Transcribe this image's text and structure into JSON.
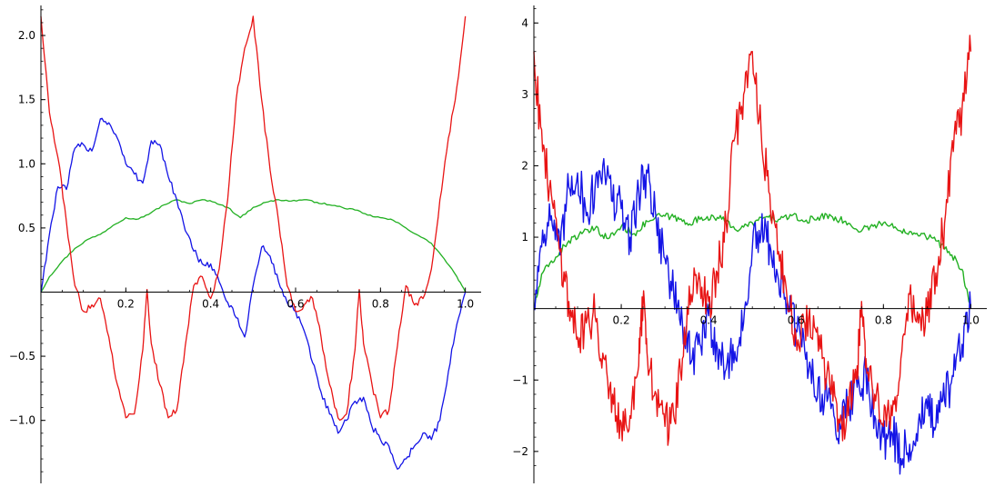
{
  "chart_data": [
    {
      "type": "line",
      "title": "",
      "xlabel": "",
      "ylabel": "",
      "xlim": [
        0,
        1.02
      ],
      "ylim": [
        -1.42,
        2.22
      ],
      "xticks": [
        0.2,
        0.4,
        0.6,
        0.8,
        1.0
      ],
      "xtick_labels": [
        "0.2",
        "0.4",
        "0.6",
        "0.8",
        "1.0"
      ],
      "yticks": [
        -1.0,
        -0.5,
        0.5,
        1.0,
        1.5,
        2.0
      ],
      "ytick_labels": [
        "−1.0",
        "−0.5",
        "0.5",
        "1.0",
        "1.5",
        "2.0"
      ],
      "grid": false,
      "series": [
        {
          "color": "#22b022",
          "x": [
            0,
            0.02,
            0.05,
            0.08,
            0.11,
            0.14,
            0.17,
            0.2,
            0.23,
            0.26,
            0.29,
            0.32,
            0.35,
            0.38,
            0.41,
            0.44,
            0.47,
            0.5,
            0.53,
            0.56,
            0.59,
            0.62,
            0.65,
            0.68,
            0.71,
            0.74,
            0.77,
            0.8,
            0.83,
            0.86,
            0.89,
            0.92,
            0.95,
            0.98,
            1.0
          ],
          "values": [
            0,
            0.12,
            0.24,
            0.34,
            0.41,
            0.45,
            0.52,
            0.58,
            0.57,
            0.62,
            0.68,
            0.72,
            0.69,
            0.72,
            0.7,
            0.66,
            0.58,
            0.66,
            0.7,
            0.72,
            0.71,
            0.72,
            0.7,
            0.68,
            0.66,
            0.64,
            0.6,
            0.58,
            0.56,
            0.5,
            0.44,
            0.38,
            0.26,
            0.12,
            0
          ]
        },
        {
          "color": "#1414e6",
          "x": [
            0,
            0.02,
            0.04,
            0.06,
            0.08,
            0.1,
            0.12,
            0.14,
            0.16,
            0.18,
            0.2,
            0.22,
            0.24,
            0.26,
            0.28,
            0.3,
            0.32,
            0.34,
            0.36,
            0.38,
            0.4,
            0.42,
            0.44,
            0.46,
            0.48,
            0.5,
            0.52,
            0.54,
            0.56,
            0.58,
            0.6,
            0.62,
            0.64,
            0.66,
            0.68,
            0.7,
            0.72,
            0.74,
            0.76,
            0.78,
            0.8,
            0.82,
            0.84,
            0.86,
            0.88,
            0.9,
            0.92,
            0.94,
            0.96,
            0.98,
            1.0
          ],
          "values": [
            0,
            0.45,
            0.82,
            0.8,
            1.12,
            1.15,
            1.1,
            1.35,
            1.32,
            1.2,
            1.0,
            0.92,
            0.85,
            1.18,
            1.15,
            0.9,
            0.72,
            0.48,
            0.32,
            0.22,
            0.22,
            0.08,
            -0.08,
            -0.2,
            -0.35,
            0.05,
            0.35,
            0.28,
            0.08,
            -0.08,
            -0.15,
            -0.3,
            -0.55,
            -0.78,
            -0.95,
            -1.1,
            -1.0,
            -0.85,
            -0.82,
            -1.05,
            -1.15,
            -1.2,
            -1.38,
            -1.3,
            -1.2,
            -1.1,
            -1.15,
            -1.0,
            -0.62,
            -0.25,
            0
          ]
        },
        {
          "color": "#e81414",
          "x": [
            0,
            0.02,
            0.04,
            0.06,
            0.08,
            0.1,
            0.12,
            0.14,
            0.16,
            0.18,
            0.2,
            0.22,
            0.24,
            0.25,
            0.26,
            0.28,
            0.3,
            0.32,
            0.34,
            0.36,
            0.38,
            0.4,
            0.42,
            0.44,
            0.46,
            0.48,
            0.5,
            0.52,
            0.54,
            0.56,
            0.58,
            0.6,
            0.62,
            0.64,
            0.66,
            0.68,
            0.7,
            0.72,
            0.74,
            0.75,
            0.76,
            0.78,
            0.8,
            0.82,
            0.84,
            0.86,
            0.88,
            0.9,
            0.92,
            0.94,
            0.96,
            0.98,
            1.0
          ],
          "values": [
            2.15,
            1.4,
            1.05,
            0.55,
            0.05,
            -0.15,
            -0.1,
            -0.05,
            -0.35,
            -0.72,
            -0.98,
            -0.95,
            -0.45,
            0.02,
            -0.4,
            -0.72,
            -0.98,
            -0.92,
            -0.42,
            0.05,
            0.12,
            -0.05,
            0.18,
            0.72,
            1.5,
            1.9,
            2.15,
            1.5,
            0.95,
            0.55,
            0.05,
            -0.15,
            -0.1,
            -0.05,
            -0.35,
            -0.72,
            -0.98,
            -0.95,
            -0.45,
            0.02,
            -0.4,
            -0.72,
            -0.98,
            -0.92,
            -0.42,
            0.05,
            -0.1,
            -0.05,
            0.18,
            0.72,
            1.2,
            1.6,
            2.15
          ]
        }
      ]
    },
    {
      "type": "line",
      "title": "",
      "xlabel": "",
      "ylabel": "",
      "xlim": [
        0,
        1.02
      ],
      "ylim": [
        -2.32,
        4.22
      ],
      "xticks": [
        0.2,
        0.4,
        0.6,
        0.8,
        1.0
      ],
      "xtick_labels": [
        "0.2",
        "0.4",
        "0.6",
        "0.8",
        "1.0"
      ],
      "yticks": [
        -2,
        -1,
        1,
        2,
        3,
        4
      ],
      "ytick_labels": [
        "−2",
        "−1",
        "1",
        "2",
        "3",
        "4"
      ],
      "grid": false,
      "series": [
        {
          "color": "#22b022",
          "x": [
            0,
            0.02,
            0.05,
            0.08,
            0.11,
            0.14,
            0.17,
            0.2,
            0.23,
            0.26,
            0.29,
            0.32,
            0.35,
            0.38,
            0.41,
            0.44,
            0.47,
            0.5,
            0.53,
            0.56,
            0.59,
            0.62,
            0.65,
            0.68,
            0.71,
            0.74,
            0.77,
            0.8,
            0.83,
            0.86,
            0.89,
            0.92,
            0.95,
            0.98,
            1.0
          ],
          "values": [
            0,
            0.5,
            0.72,
            0.95,
            1.05,
            1.12,
            0.98,
            1.15,
            1.05,
            1.22,
            1.3,
            1.28,
            1.2,
            1.25,
            1.3,
            1.22,
            1.1,
            1.2,
            1.28,
            1.25,
            1.3,
            1.22,
            1.28,
            1.3,
            1.22,
            1.1,
            1.15,
            1.2,
            1.12,
            1.08,
            1.05,
            0.95,
            0.8,
            0.55,
            0
          ]
        },
        {
          "color": "#1414e6",
          "x": [
            0,
            0.02,
            0.04,
            0.06,
            0.08,
            0.1,
            0.12,
            0.14,
            0.16,
            0.18,
            0.2,
            0.22,
            0.24,
            0.26,
            0.28,
            0.3,
            0.32,
            0.34,
            0.36,
            0.38,
            0.4,
            0.42,
            0.44,
            0.46,
            0.48,
            0.5,
            0.52,
            0.54,
            0.56,
            0.58,
            0.6,
            0.62,
            0.64,
            0.66,
            0.68,
            0.7,
            0.72,
            0.74,
            0.76,
            0.78,
            0.8,
            0.82,
            0.84,
            0.86,
            0.88,
            0.9,
            0.92,
            0.94,
            0.96,
            0.98,
            1.0
          ],
          "values": [
            0,
            1.1,
            1.3,
            0.75,
            1.7,
            1.9,
            1.3,
            1.7,
            2.1,
            1.5,
            1.4,
            1.0,
            1.65,
            1.9,
            1.25,
            0.7,
            0.2,
            -0.2,
            -0.75,
            -0.5,
            -0.1,
            -0.55,
            -0.85,
            -0.6,
            -0.2,
            0.85,
            1.05,
            0.9,
            0.4,
            0.1,
            -0.3,
            -0.6,
            -1.0,
            -1.2,
            -1.4,
            -1.6,
            -1.3,
            -1.1,
            -0.9,
            -1.5,
            -1.8,
            -1.75,
            -2.1,
            -1.9,
            -1.6,
            -1.4,
            -1.65,
            -1.3,
            -0.95,
            -0.5,
            0
          ]
        },
        {
          "color": "#e81414",
          "x": [
            0,
            0.02,
            0.04,
            0.06,
            0.08,
            0.1,
            0.12,
            0.14,
            0.16,
            0.18,
            0.2,
            0.22,
            0.24,
            0.25,
            0.26,
            0.28,
            0.3,
            0.32,
            0.34,
            0.36,
            0.38,
            0.4,
            0.42,
            0.44,
            0.46,
            0.48,
            0.5,
            0.52,
            0.54,
            0.56,
            0.58,
            0.6,
            0.62,
            0.64,
            0.66,
            0.68,
            0.7,
            0.72,
            0.74,
            0.75,
            0.76,
            0.78,
            0.8,
            0.82,
            0.84,
            0.86,
            0.88,
            0.9,
            0.92,
            0.94,
            0.96,
            0.98,
            1.0
          ],
          "values": [
            3.6,
            2.2,
            1.6,
            0.8,
            0.1,
            -0.4,
            -0.2,
            -0.1,
            -0.7,
            -1.2,
            -1.6,
            -1.5,
            -0.8,
            0.1,
            -0.7,
            -1.2,
            -1.65,
            -1.5,
            -0.7,
            0.2,
            0.4,
            0.1,
            0.5,
            1.2,
            2.4,
            3.0,
            3.6,
            2.5,
            1.6,
            0.8,
            0.1,
            -0.4,
            -0.2,
            -0.1,
            -0.7,
            -1.2,
            -1.6,
            -1.5,
            -0.8,
            0.1,
            -0.7,
            -1.2,
            -1.65,
            -1.5,
            -0.7,
            0.2,
            -0.2,
            -0.1,
            0.5,
            1.2,
            2.2,
            2.8,
            3.6
          ]
        }
      ]
    }
  ]
}
